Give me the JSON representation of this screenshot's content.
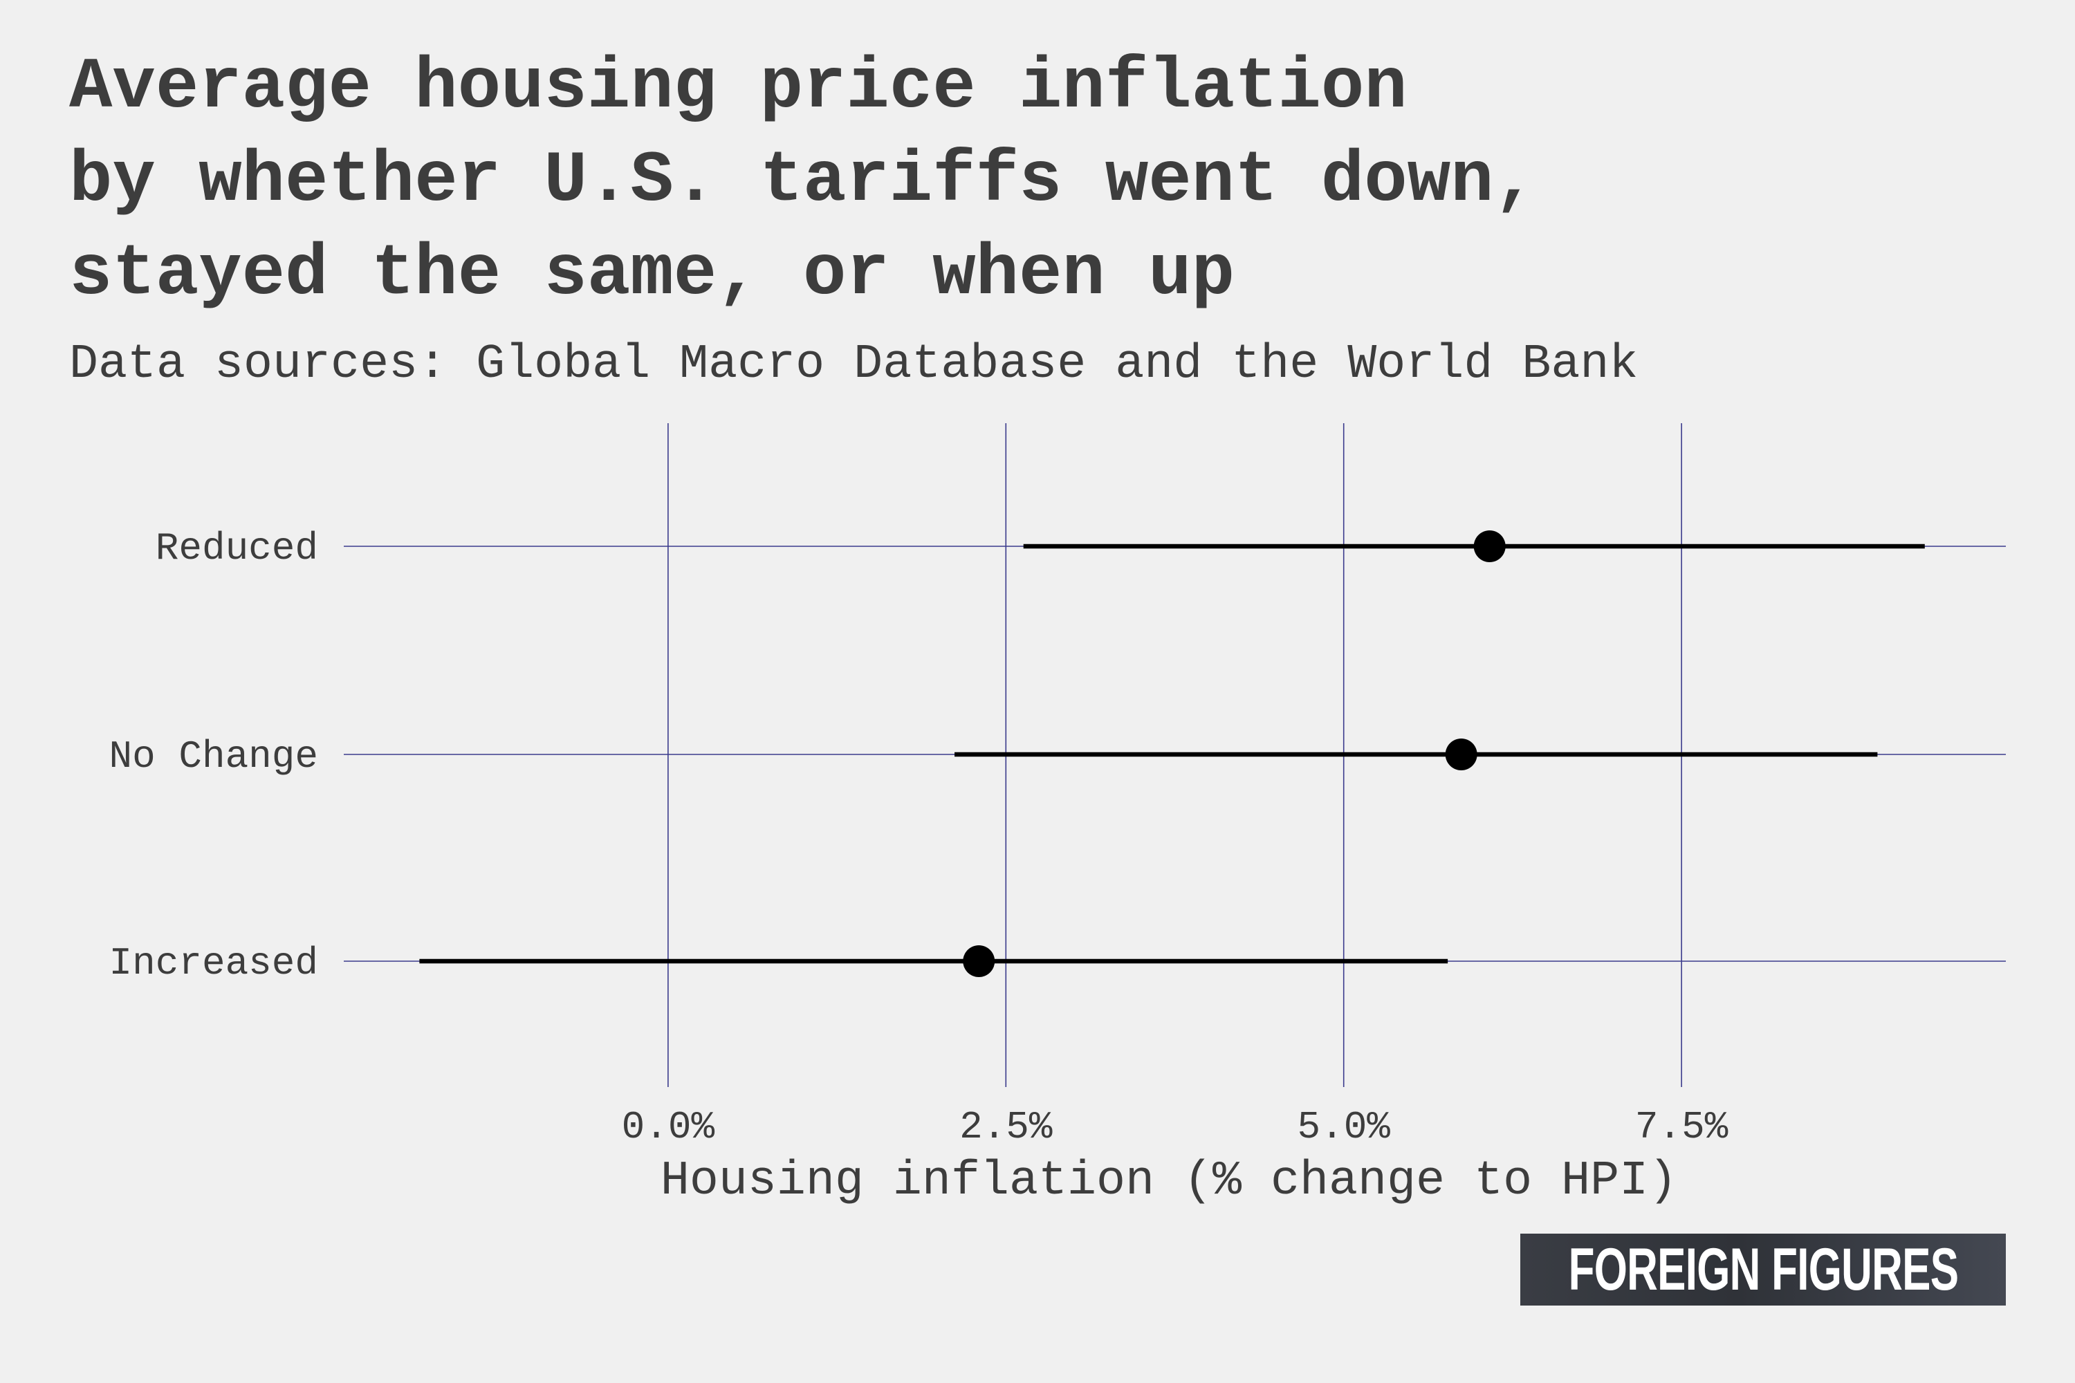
{
  "chart_data": {
    "type": "dot-and-whisker",
    "title_lines": [
      "Average housing price inflation",
      "by whether U.S. tariffs went down,",
      "stayed the same, or when up"
    ],
    "subtitle": "Data sources: Global Macro Database and the World Bank",
    "xlabel": "Housing inflation (% change to HPI)",
    "ylabel": "",
    "x_ticks": [
      0.0,
      2.5,
      5.0,
      7.5
    ],
    "x_tick_labels": [
      "0.0%",
      "2.5%",
      "5.0%",
      "7.5%"
    ],
    "xlim": [
      -2.4,
      9.9
    ],
    "categories": [
      "Reduced",
      "No Change",
      "Increased"
    ],
    "estimates": [
      6.08,
      5.87,
      2.3
    ],
    "lower": [
      2.63,
      2.12,
      -1.84
    ],
    "upper": [
      9.3,
      8.95,
      5.77
    ],
    "grid": true
  },
  "colors": {
    "background": "#f0f0f0",
    "gridline": "#3b3b8c",
    "point": "#000000",
    "interval": "#000000",
    "text": "#3d3d3d"
  },
  "brand": {
    "label": "FOREIGN FIGURES"
  }
}
